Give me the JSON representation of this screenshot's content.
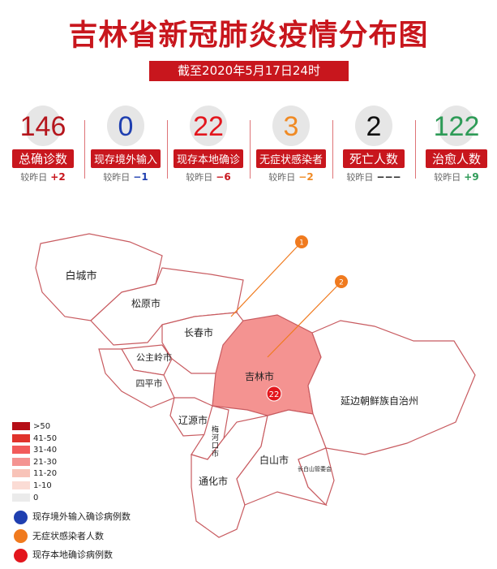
{
  "title": "吉林省新冠肺炎疫情分布图",
  "subtitle": "截至2020年5月17日24时",
  "stats": [
    {
      "value": "146",
      "label": "总确诊数",
      "change_label": "较昨日",
      "change": "+2",
      "color": "#b5161d",
      "change_color": "#c8161d"
    },
    {
      "value": "0",
      "label": "现存境外输入",
      "change_label": "较昨日",
      "change": "−1",
      "color": "#1f3fb0",
      "change_color": "#1f3fb0"
    },
    {
      "value": "22",
      "label": "现存本地确诊",
      "change_label": "较昨日",
      "change": "−6",
      "color": "#e3161d",
      "change_color": "#c8161d"
    },
    {
      "value": "3",
      "label": "无症状感染者",
      "change_label": "较昨日",
      "change": "−2",
      "color": "#f08a24",
      "change_color": "#f08a24"
    },
    {
      "value": "2",
      "label": "死亡人数",
      "change_label": "较昨日",
      "change": "−−−",
      "color": "#111111",
      "change_color": "#111111"
    },
    {
      "value": "122",
      "label": "治愈人数",
      "change_label": "较昨日",
      "change": "+9",
      "color": "#2e9b57",
      "change_color": "#2e9b57"
    }
  ],
  "map": {
    "regions": [
      {
        "name": "白城市",
        "level": "0"
      },
      {
        "name": "松原市",
        "level": "0"
      },
      {
        "name": "长春市",
        "level": "0"
      },
      {
        "name": "公主岭市",
        "level": "0"
      },
      {
        "name": "四平市",
        "level": "0"
      },
      {
        "name": "吉林市",
        "level": "21-30",
        "local_confirmed": "22"
      },
      {
        "name": "延边朝鲜族自治州",
        "level": "0"
      },
      {
        "name": "辽源市",
        "level": "0"
      },
      {
        "name": "梅河口市",
        "level": "0"
      },
      {
        "name": "通化市",
        "level": "0"
      },
      {
        "name": "白山市",
        "level": "0"
      },
      {
        "name": "长白山管委会",
        "level": "0"
      }
    ],
    "callouts": [
      "1",
      "2"
    ]
  },
  "legend": {
    "scale": [
      {
        "label": ">50",
        "color": "#b50e16"
      },
      {
        "label": "41-50",
        "color": "#e0322b"
      },
      {
        "label": "31-40",
        "color": "#f25a5a"
      },
      {
        "label": "21-30",
        "color": "#f49391"
      },
      {
        "label": "11-20",
        "color": "#f8c3b8"
      },
      {
        "label": "1-10",
        "color": "#fbdcd5"
      },
      {
        "label": "0",
        "color": "#ebebeb"
      }
    ],
    "markers": [
      {
        "label": "现存境外输入确诊病例数",
        "color": "#1f3fb0"
      },
      {
        "label": "无症状感染者人数",
        "color": "#f07a1e"
      },
      {
        "label": "现存本地确诊病例数",
        "color": "#e3161d"
      }
    ]
  }
}
